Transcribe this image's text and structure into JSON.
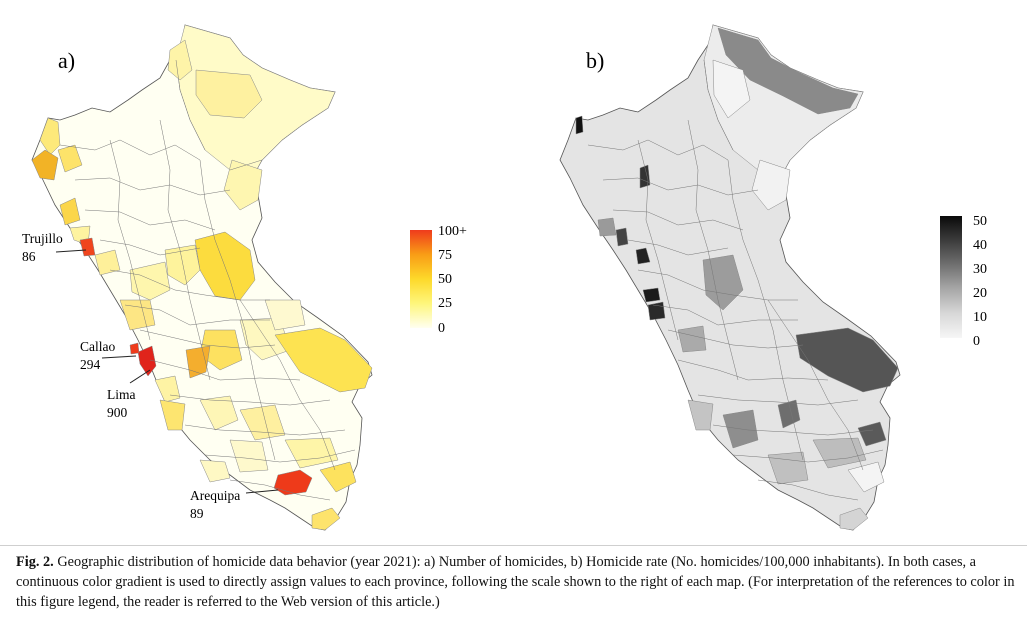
{
  "panels": [
    {
      "label": "a)",
      "legend": {
        "ticks": [
          "100+",
          "75",
          "50",
          "25",
          "0"
        ],
        "colors": [
          "#ef3b1c",
          "#f99d16",
          "#fdd92a",
          "#fef67c",
          "#fffff0"
        ]
      },
      "callouts": [
        {
          "name": "Trujillo",
          "value": "86"
        },
        {
          "name": "Callao",
          "value": "294"
        },
        {
          "name": "Lima",
          "value": "900"
        },
        {
          "name": "Arequipa",
          "value": "89"
        }
      ]
    },
    {
      "label": "b)",
      "legend": {
        "ticks": [
          "50",
          "40",
          "30",
          "20",
          "10",
          "0"
        ],
        "colors": [
          "#0a0a0a",
          "#3c3c3c",
          "#707070",
          "#a8a8a8",
          "#d8d8d8",
          "#f6f6f6"
        ]
      }
    }
  ],
  "caption": {
    "fig": "Fig. 2.",
    "text": "Geographic distribution of homicide data behavior (year 2021): a) Number of homicides, b) Homicide rate (No. homicides/100,000 inhabitants). In both cases, a continuous color gradient is used to directly assign values to each province, following the scale shown to the right of each map. (For interpretation of the references to color in this figure legend, the reader is referred to the Web version of this article.)"
  }
}
